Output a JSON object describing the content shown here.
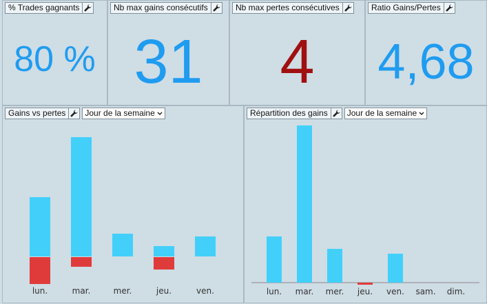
{
  "kpis": [
    {
      "title": "% Trades gagnants",
      "value": "80 %",
      "color": "#1f9cf0"
    },
    {
      "title": "Nb max gains consécutifs",
      "value": "31",
      "color": "#1f9cf0"
    },
    {
      "title": "Nb max pertes consécutives",
      "value": "4",
      "color": "#a01010"
    },
    {
      "title": "Ratio Gains/Pertes",
      "value": "4,68",
      "color": "#1f9cf0"
    }
  ],
  "gains_vs_pertes": {
    "title": "Gains vs pertes",
    "dropdown": "Jour de la semaine"
  },
  "repartition": {
    "title": "Répartition des gains",
    "dropdown": "Jour de la semaine"
  },
  "colors": {
    "gain": "#42d0fb",
    "loss": "#e03b3b",
    "axis": "#888888"
  },
  "chart_data": [
    {
      "type": "bar",
      "title": "Gains vs pertes",
      "categories": [
        "lun.",
        "mar.",
        "mer.",
        "jeu.",
        "ven."
      ],
      "series": [
        {
          "name": "",
          "values": [
            86,
            173,
            33,
            15,
            29
          ]
        },
        {
          "name": "",
          "values": [
            -39,
            -14,
            0,
            -18,
            0
          ]
        }
      ]
    },
    {
      "type": "bar",
      "title": "Répartition des gains",
      "categories": [
        "lun.",
        "mar.",
        "mer.",
        "jeu.",
        "ven.",
        "sam.",
        "dim."
      ],
      "values": [
        67,
        228,
        49,
        -2,
        42,
        0,
        0
      ]
    }
  ]
}
